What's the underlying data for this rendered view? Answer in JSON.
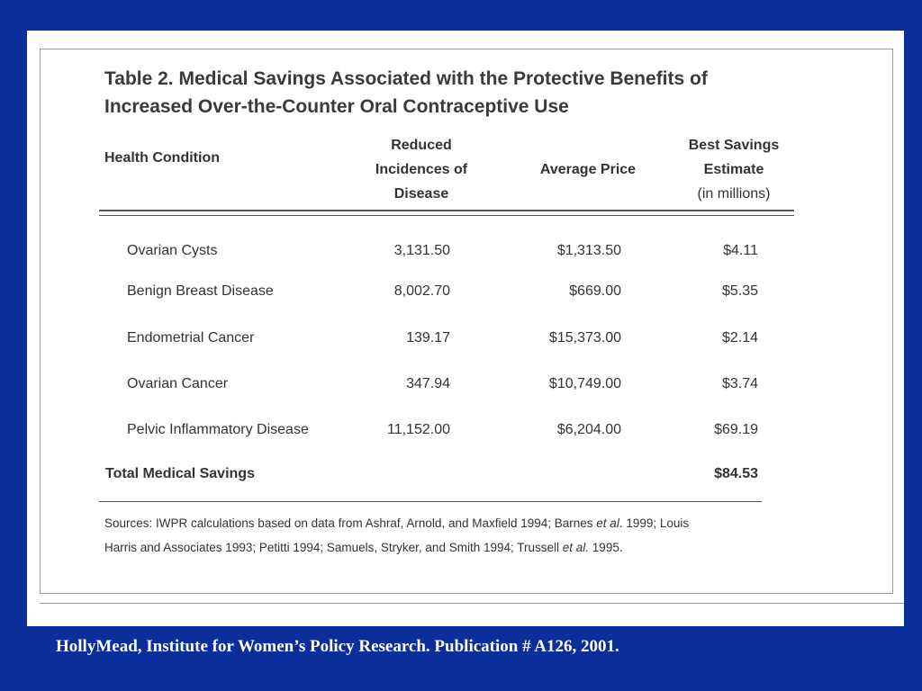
{
  "table": {
    "title_line1": "Table 2. Medical Savings Associated with the Protective Benefits of",
    "title_line2": "Increased Over-the-Counter Oral Contraceptive Use",
    "headers": {
      "condition": "Health Condition",
      "reduced": [
        "Reduced",
        "Incidences of",
        "Disease"
      ],
      "price": "Average Price",
      "savings": [
        "Best Savings",
        "Estimate",
        "(in millions)"
      ]
    },
    "rows": [
      {
        "condition": "Ovarian Cysts",
        "reduced": "3,131.50",
        "price": "$1,313.50",
        "savings": "$4.11"
      },
      {
        "condition": "Benign Breast Disease",
        "reduced": "8,002.70",
        "price": "$669.00",
        "savings": "$5.35"
      },
      {
        "condition": "Endometrial Cancer",
        "reduced": "139.17",
        "price": "$15,373.00",
        "savings": "$2.14"
      },
      {
        "condition": "Ovarian Cancer",
        "reduced": "347.94",
        "price": "$10,749.00",
        "savings": "$3.74"
      },
      {
        "condition": "Pelvic Inflammatory Disease",
        "reduced": "11,152.00",
        "price": "$6,204.00",
        "savings": "$69.19"
      }
    ],
    "total_label": "Total Medical Savings",
    "total_value": "$84.53",
    "sources_line1_a": "Sources:  IWPR calculations based on data from Ashraf, Arnold, and Maxfield 1994; Barnes ",
    "sources_line1_em": "et al",
    "sources_line1_b": ". 1999; Louis",
    "sources_line2_a": "Harris and Associates 1993; Petitti 1994; Samuels, Stryker, and Smith 1994; Trussell ",
    "sources_line2_em": "et al.",
    "sources_line2_b": "  1995."
  },
  "caption": "HollyMead, Institute for Women’s Policy Research.  Publication # A126, 2001."
}
